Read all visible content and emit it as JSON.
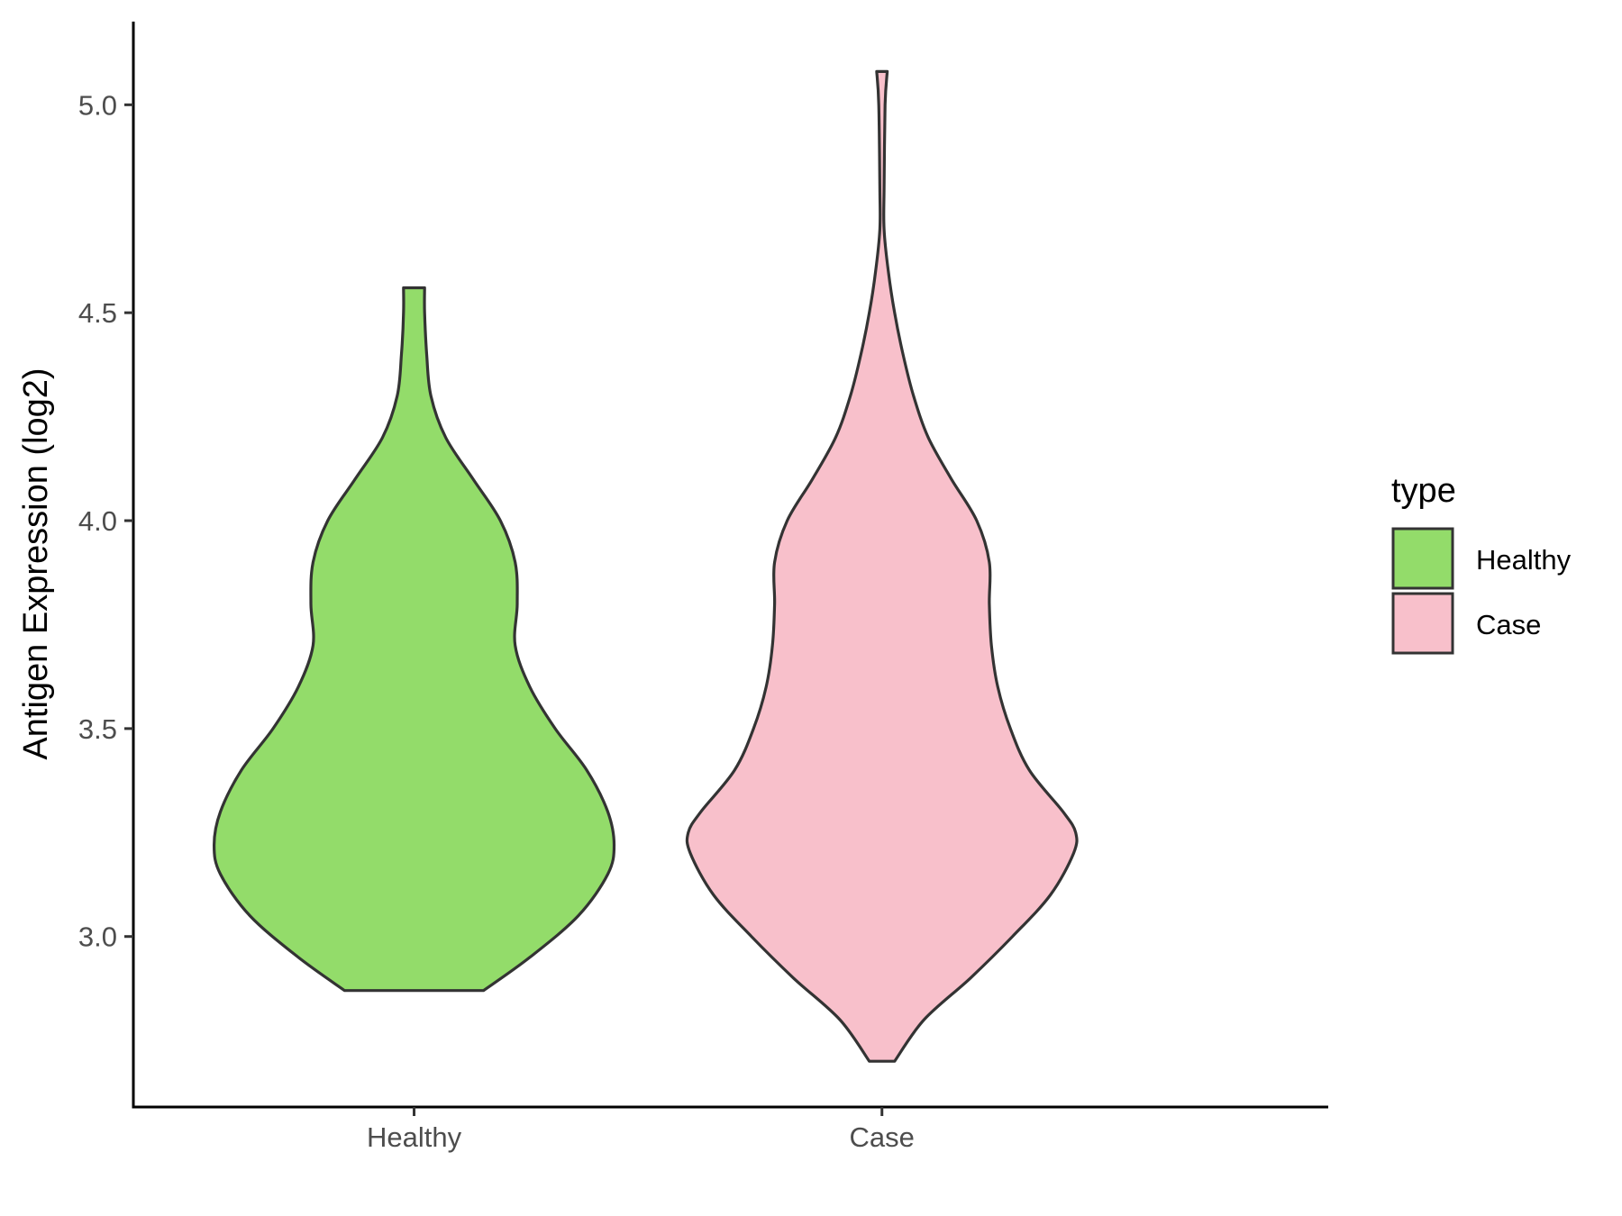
{
  "chart_data": {
    "type": "violin",
    "title": "",
    "xlabel": "",
    "ylabel": "Antigen Expression (log2)",
    "categories": [
      "Healthy",
      "Case"
    ],
    "yticks": [
      "3.0",
      "3.5",
      "4.0",
      "4.5",
      "5.0"
    ],
    "ylim": [
      2.59,
      5.2
    ],
    "grid": false,
    "legend": {
      "title": "type",
      "position": "right",
      "entries": [
        {
          "label": "Healthy",
          "color": "#93dc6a"
        },
        {
          "label": "Case",
          "color": "#f8c0cb"
        }
      ]
    },
    "series": [
      {
        "name": "Healthy",
        "color": "#93dc6a",
        "y_min": 2.87,
        "y_max": 4.56,
        "density_profile": [
          [
            2.87,
            0.33
          ],
          [
            2.95,
            0.55
          ],
          [
            3.05,
            0.78
          ],
          [
            3.15,
            0.92
          ],
          [
            3.22,
            0.95
          ],
          [
            3.3,
            0.92
          ],
          [
            3.4,
            0.82
          ],
          [
            3.5,
            0.67
          ],
          [
            3.6,
            0.55
          ],
          [
            3.7,
            0.48
          ],
          [
            3.8,
            0.49
          ],
          [
            3.9,
            0.48
          ],
          [
            4.0,
            0.41
          ],
          [
            4.1,
            0.28
          ],
          [
            4.2,
            0.15
          ],
          [
            4.3,
            0.08
          ],
          [
            4.4,
            0.06
          ],
          [
            4.5,
            0.05
          ],
          [
            4.56,
            0.05
          ]
        ]
      },
      {
        "name": "Case",
        "color": "#f8c0cb",
        "y_min": 2.7,
        "y_max": 5.08,
        "density_profile": [
          [
            2.7,
            0.06
          ],
          [
            2.8,
            0.2
          ],
          [
            2.9,
            0.42
          ],
          [
            3.0,
            0.62
          ],
          [
            3.1,
            0.8
          ],
          [
            3.2,
            0.91
          ],
          [
            3.25,
            0.92
          ],
          [
            3.3,
            0.86
          ],
          [
            3.4,
            0.7
          ],
          [
            3.5,
            0.61
          ],
          [
            3.6,
            0.55
          ],
          [
            3.7,
            0.52
          ],
          [
            3.8,
            0.51
          ],
          [
            3.9,
            0.51
          ],
          [
            4.0,
            0.45
          ],
          [
            4.1,
            0.33
          ],
          [
            4.2,
            0.22
          ],
          [
            4.3,
            0.15
          ],
          [
            4.4,
            0.1
          ],
          [
            4.5,
            0.06
          ],
          [
            4.6,
            0.03
          ],
          [
            4.7,
            0.01
          ],
          [
            4.8,
            0.01
          ],
          [
            5.0,
            0.015
          ],
          [
            5.08,
            0.025
          ]
        ]
      }
    ]
  }
}
